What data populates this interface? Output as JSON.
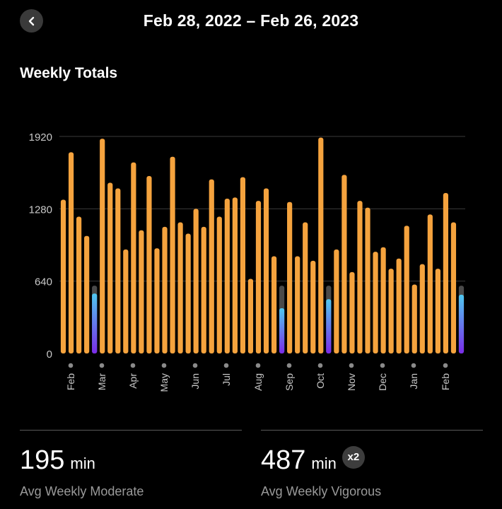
{
  "header": {
    "date_range": "Feb 28, 2022 – Feb 26, 2023",
    "back_icon": "chevron-left-icon"
  },
  "section_title": "Weekly Totals",
  "colors": {
    "bar": "#F5A33E",
    "bar_current_top": "#4FC8F0",
    "bar_current_bottom": "#7A2BE8",
    "remaining": "#4a4a4a",
    "grid": "#3a3a3a",
    "axis_text": "#c8c8c8"
  },
  "chart_data": {
    "type": "bar",
    "title": "Weekly Totals",
    "ylim": [
      0,
      2000
    ],
    "yticks": [
      0,
      640,
      1280,
      1920
    ],
    "grid": true,
    "month_labels": [
      "Feb",
      "Mar",
      "Apr",
      "May",
      "Jun",
      "Jul",
      "Aug",
      "Sep",
      "Oct",
      "Nov",
      "Dec",
      "Jan",
      "Feb"
    ],
    "values": [
      1360,
      1780,
      1210,
      1040,
      530,
      1900,
      1510,
      1460,
      920,
      1690,
      1090,
      1570,
      930,
      1120,
      1740,
      1160,
      1060,
      1280,
      1120,
      1540,
      1210,
      1370,
      1380,
      1560,
      660,
      1350,
      1460,
      860,
      400,
      1340,
      860,
      1160,
      820,
      1910,
      480,
      920,
      1580,
      720,
      1350,
      1290,
      900,
      940,
      750,
      840,
      1130,
      610,
      790,
      1230,
      750,
      1420,
      1160,
      520
    ],
    "highlighted_weeks": [
      {
        "index": 4,
        "value": 530,
        "goal": 600
      },
      {
        "index": 28,
        "value": 400,
        "goal": 600
      },
      {
        "index": 34,
        "value": 480,
        "goal": 600
      },
      {
        "index": 51,
        "value": 520,
        "goal": 600
      }
    ]
  },
  "stats": [
    {
      "value": "195",
      "unit": "min",
      "label": "Avg Weekly Moderate"
    },
    {
      "value": "487",
      "unit": "min",
      "label": "Avg Weekly Vigorous",
      "badge": "x2"
    }
  ]
}
